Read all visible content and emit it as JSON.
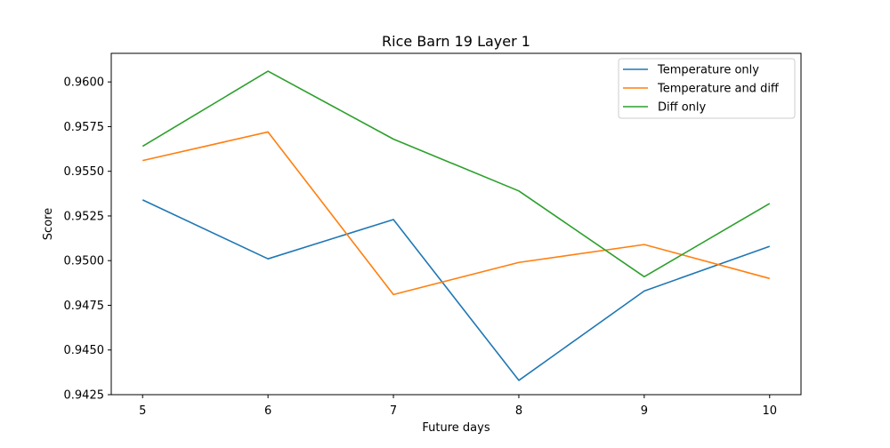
{
  "chart_data": {
    "type": "line",
    "title": "Rice Barn 19 Layer 1",
    "xlabel": "Future days",
    "ylabel": "Score",
    "x": [
      5,
      6,
      7,
      8,
      9,
      10
    ],
    "xticks": [
      "5",
      "6",
      "7",
      "8",
      "9",
      "10"
    ],
    "yticks": [
      "0.9425",
      "0.9450",
      "0.9475",
      "0.9500",
      "0.9525",
      "0.9550",
      "0.9575",
      "0.9600"
    ],
    "xlim": [
      4.75,
      10.25
    ],
    "ylim": [
      0.9425,
      0.9616
    ],
    "grid": false,
    "legend_position": "top-right",
    "series": [
      {
        "name": "Temperature only",
        "color": "#1f77b4",
        "values": [
          0.9534,
          0.9501,
          0.9523,
          0.9433,
          0.9483,
          0.9508
        ]
      },
      {
        "name": "Temperature and diff",
        "color": "#ff7f0e",
        "values": [
          0.9556,
          0.9572,
          0.9481,
          0.9499,
          0.9509,
          0.949
        ]
      },
      {
        "name": "Diff only",
        "color": "#2ca02c",
        "values": [
          0.9564,
          0.9606,
          0.9568,
          0.9539,
          0.9491,
          0.9532
        ]
      }
    ]
  }
}
